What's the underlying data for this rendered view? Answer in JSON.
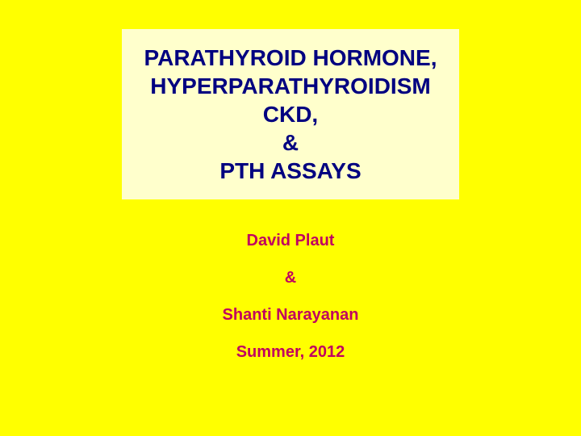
{
  "slide": {
    "background_color": "#ffff00",
    "title_box": {
      "background_color": "#ffffcc",
      "text_color": "#000080",
      "font_size": 28,
      "lines": [
        "PARATHYROID HORMONE,",
        "HYPERPARATHYROIDISM",
        "CKD,",
        "&",
        "PTH ASSAYS"
      ]
    },
    "authors": {
      "text_color": "#c00060",
      "font_size": 20,
      "lines": [
        "David Plaut",
        "&",
        "Shanti Narayanan",
        "Summer, 2012"
      ]
    }
  }
}
